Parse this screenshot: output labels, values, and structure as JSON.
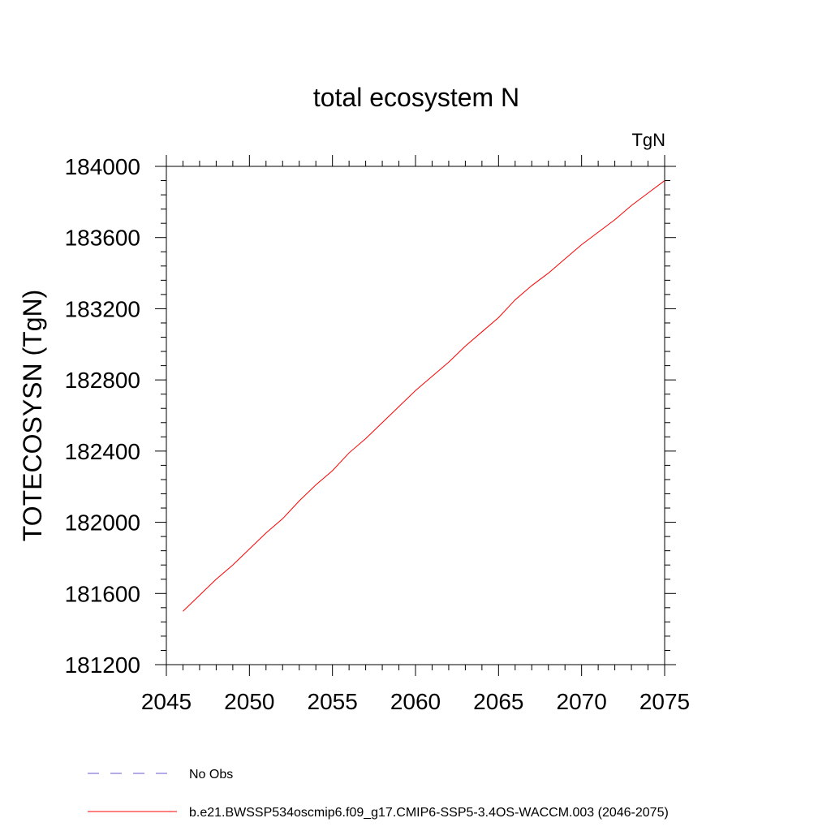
{
  "chart_data": {
    "type": "line",
    "title": "total ecosystem N",
    "units_label": "TgN",
    "ylabel": "TOTECOSYSN  (TgN)",
    "xlabel": "",
    "xlim": [
      2045,
      2075
    ],
    "ylim": [
      181200,
      184000
    ],
    "x_ticks": [
      2045,
      2050,
      2055,
      2060,
      2065,
      2070,
      2075
    ],
    "y_ticks": [
      181200,
      181600,
      182000,
      182400,
      182800,
      183200,
      183600,
      184000
    ],
    "grid": false,
    "legend_position": "bottom",
    "series": [
      {
        "name": "No Obs",
        "color": "#6a5acd",
        "style": "dashed",
        "x": [],
        "values": []
      },
      {
        "name": "b.e21.BWSSP534oscmip6.f09_g17.CMIP6-SSP5-3.4OS-WACCM.003 (2046-2075)",
        "color": "#ff0000",
        "style": "solid",
        "x": [
          2046,
          2047,
          2048,
          2049,
          2050,
          2051,
          2052,
          2053,
          2054,
          2055,
          2056,
          2057,
          2058,
          2059,
          2060,
          2061,
          2062,
          2063,
          2064,
          2065,
          2066,
          2067,
          2068,
          2069,
          2070,
          2071,
          2072,
          2073,
          2074,
          2075
        ],
        "values": [
          181500,
          181590,
          181680,
          181760,
          181850,
          181940,
          182020,
          182120,
          182210,
          182290,
          182390,
          182470,
          182560,
          182650,
          182740,
          182820,
          182900,
          182990,
          183070,
          183150,
          183250,
          183330,
          183400,
          183480,
          183560,
          183630,
          183700,
          183780,
          183850,
          183920
        ]
      }
    ]
  }
}
